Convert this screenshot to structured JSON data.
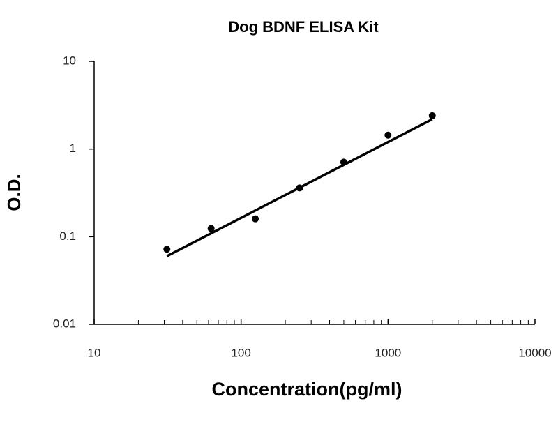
{
  "chart_data": {
    "type": "scatter",
    "title": "Dog BDNF ELISA Kit",
    "x_label": "Concentration(pg/ml)",
    "y_label": "O.D.",
    "xscale": "log",
    "yscale": "log",
    "xlim": [
      10,
      10000
    ],
    "ylim": [
      0.01,
      10
    ],
    "xticks": [
      10,
      100,
      1000,
      10000
    ],
    "yticks": [
      0.01,
      0.1,
      1,
      10
    ],
    "xminorticks": [
      20,
      30,
      40,
      50,
      60,
      70,
      80,
      90,
      200,
      300,
      400,
      500,
      600,
      700,
      800,
      900,
      2000,
      3000,
      4000,
      5000,
      6000,
      7000,
      8000,
      9000
    ],
    "series": [
      {
        "style": "points",
        "color": "#000000",
        "x": [
          31.25,
          62.5,
          125,
          250,
          500,
          1000,
          2000
        ],
        "values": [
          0.072,
          0.124,
          0.16,
          0.36,
          0.71,
          1.44,
          2.4
        ]
      },
      {
        "style": "line",
        "color": "#000000",
        "x": [
          31.25,
          2000
        ],
        "values": [
          0.06,
          2.19
        ]
      }
    ]
  }
}
